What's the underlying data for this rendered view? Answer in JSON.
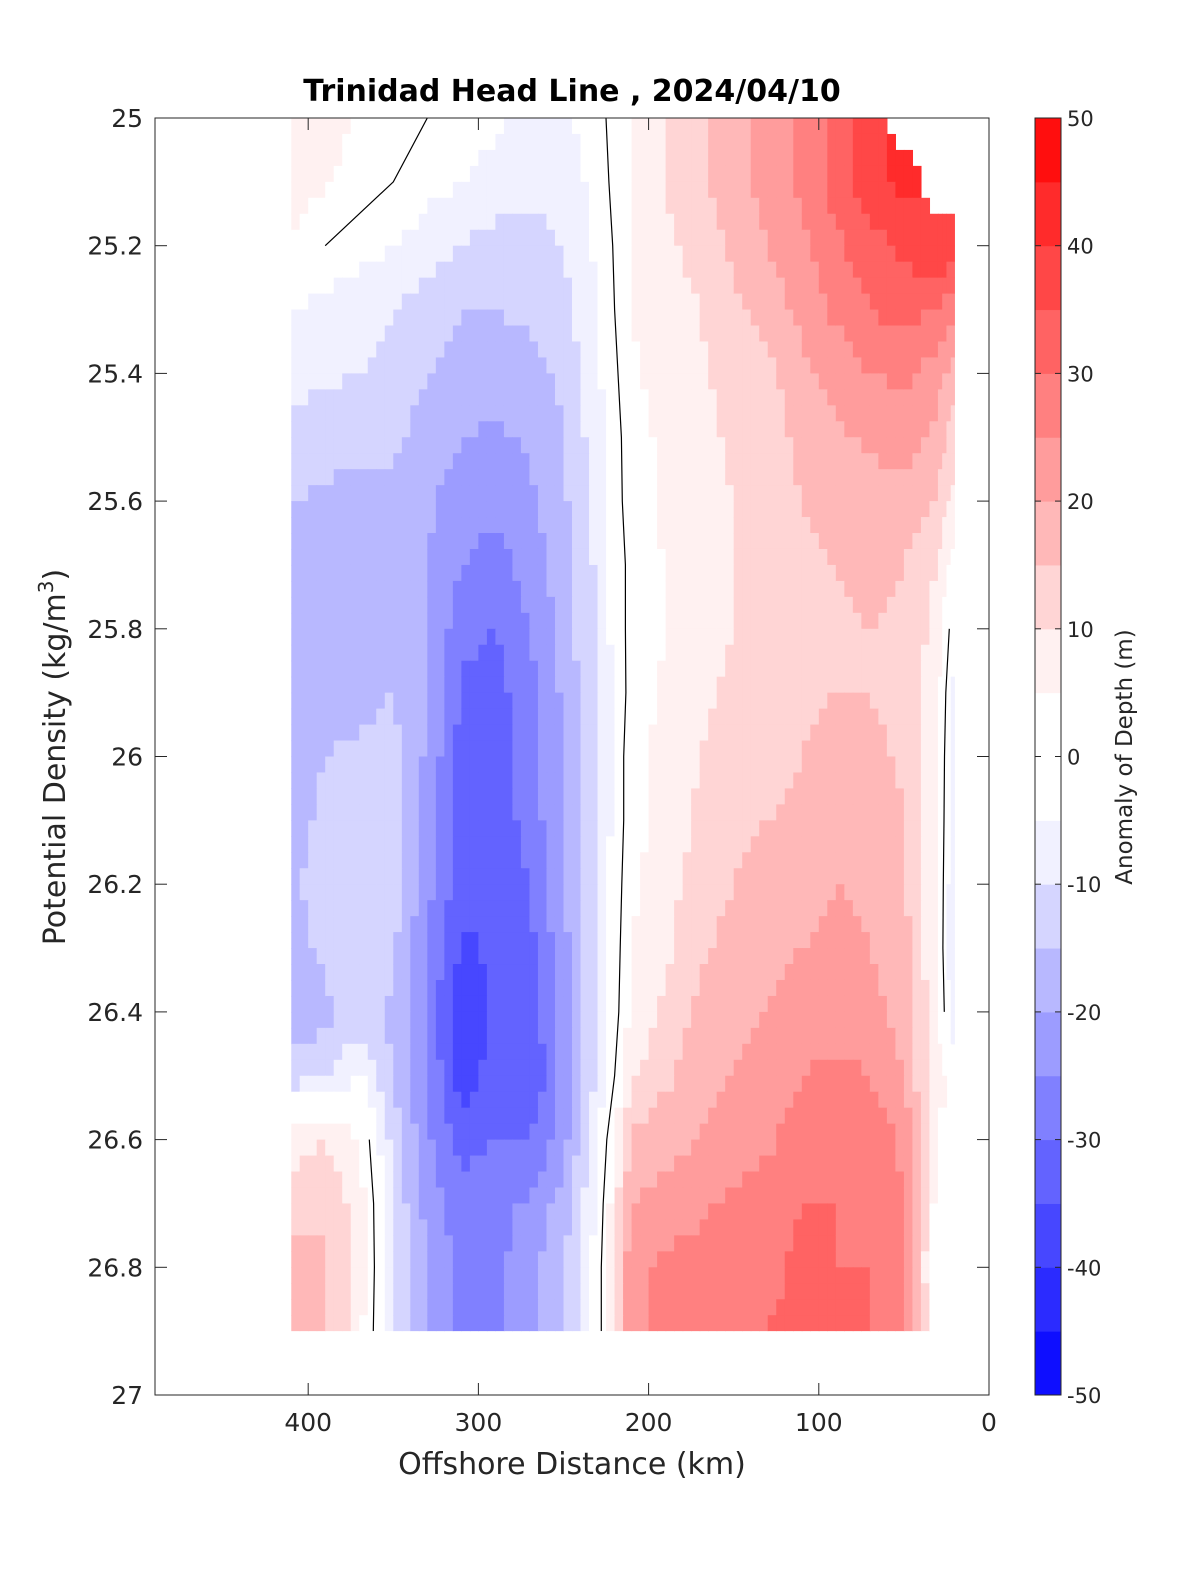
{
  "chart_data": {
    "type": "heatmap",
    "title": "Trinidad Head Line , 2024/04/10",
    "xlabel": "Offshore Distance (km)",
    "ylabel_main": "Potential Density (kg/m",
    "ylabel_sup": "3",
    "ylabel_close": ")",
    "colorbar_label": "Anomaly of Depth (m)",
    "xlim": [
      490,
      0
    ],
    "ylim": [
      25,
      27
    ],
    "x_reversed": true,
    "y_reversed": true,
    "xticks": [
      400,
      300,
      200,
      100,
      0
    ],
    "xtick_labels": [
      "400",
      "300",
      "200",
      "100",
      "0"
    ],
    "yticks": [
      25,
      25.2,
      25.4,
      25.6,
      25.8,
      26,
      26.2,
      26.4,
      26.6,
      26.8,
      27
    ],
    "ytick_labels": [
      "25",
      "25.2",
      "25.4",
      "25.6",
      "25.8",
      "26",
      "26.2",
      "26.4",
      "26.6",
      "26.8",
      "27"
    ],
    "colorbar_range": [
      -50,
      50
    ],
    "colorbar_ticks": [
      50,
      40,
      30,
      20,
      10,
      0,
      -10,
      -20,
      -30,
      -40,
      -50
    ],
    "colorbar_tick_labels": [
      "50",
      "40",
      "30",
      "20",
      "10",
      "0",
      "-10",
      "-20",
      "-30",
      "-40",
      "-50"
    ],
    "colorbar_levels": [
      -50,
      -45,
      -40,
      -35,
      -30,
      -25,
      -20,
      -15,
      -10,
      -5,
      5,
      10,
      15,
      20,
      25,
      30,
      35,
      40,
      45,
      50
    ],
    "data_extent": {
      "x": [
        410,
        20
      ],
      "y": [
        25,
        26.9
      ]
    },
    "grid": false,
    "zero_contour_color": "#000000",
    "colormap": {
      "negative": "#0000ff",
      "zero": "#ffffff",
      "positive": "#ff0000"
    },
    "x": [
      410,
      390,
      370,
      350,
      330,
      310,
      290,
      270,
      250,
      230,
      210,
      190,
      170,
      150,
      130,
      110,
      90,
      70,
      50,
      30,
      20
    ],
    "y": [
      25.0,
      25.1,
      25.2,
      25.3,
      25.4,
      25.5,
      25.6,
      25.7,
      25.8,
      25.9,
      26.0,
      26.1,
      26.2,
      26.3,
      26.4,
      26.5,
      26.6,
      26.7,
      26.8,
      26.9
    ],
    "z": [
      [
        8,
        6,
        5,
        3,
        0,
        -2,
        -4,
        -6,
        -6,
        -2,
        6,
        10,
        14,
        18,
        22,
        26,
        32,
        40,
        null,
        null,
        null
      ],
      [
        8,
        6,
        3,
        0,
        -3,
        -5,
        -7,
        -8,
        -8,
        -3,
        6,
        10,
        14,
        18,
        22,
        26,
        32,
        38,
        42,
        null,
        null
      ],
      [
        4,
        0,
        -3,
        -5,
        -8,
        -10,
        -12,
        -12,
        -10,
        -4,
        5,
        9,
        12,
        16,
        20,
        24,
        29,
        33,
        36,
        40,
        38
      ],
      [
        -5,
        -7,
        -8,
        -10,
        -12,
        -15,
        -15,
        -14,
        -12,
        -5,
        5,
        8,
        10,
        14,
        17,
        22,
        26,
        30,
        32,
        30,
        26
      ],
      [
        -8,
        -9,
        -10,
        -12,
        -15,
        -17,
        -18,
        -17,
        -14,
        -6,
        4,
        7,
        9,
        12,
        14,
        18,
        22,
        25,
        26,
        22,
        18
      ],
      [
        -12,
        -13,
        -13,
        -14,
        -17,
        -20,
        -21,
        -19,
        -15,
        -7,
        3,
        6,
        8,
        11,
        13,
        16,
        19,
        21,
        22,
        18,
        12
      ],
      [
        -15,
        -16,
        -17,
        -16,
        -19,
        -23,
        -24,
        -21,
        -16,
        -8,
        3,
        6,
        8,
        10,
        12,
        15,
        17,
        18,
        18,
        14,
        8
      ],
      [
        -15,
        -18,
        -20,
        -17,
        -20,
        -25,
        -27,
        -23,
        -17,
        -9,
        2,
        5,
        8,
        10,
        12,
        14,
        15,
        16,
        15,
        10,
        2
      ],
      [
        -16,
        -17,
        -20,
        -16,
        -20,
        -28,
        -30,
        -25,
        -18,
        -9,
        2,
        5,
        8,
        10,
        12,
        13,
        14,
        15,
        14,
        8,
        -4
      ],
      [
        -17,
        -16,
        -17,
        -15,
        -20,
        -31,
        -32,
        -27,
        -19,
        -10,
        2,
        6,
        9,
        11,
        12,
        14,
        15,
        15,
        13,
        6,
        -7
      ],
      [
        -18,
        -15,
        -14,
        -13,
        -21,
        -32,
        -33,
        -28,
        -20,
        -10,
        3,
        7,
        10,
        12,
        13,
        15,
        16,
        17,
        14,
        5,
        -8
      ],
      [
        -17,
        -14,
        -12,
        -12,
        -22,
        -32,
        -33,
        -28,
        -20,
        -10,
        3,
        7,
        11,
        13,
        15,
        16,
        18,
        18,
        15,
        5,
        -9
      ],
      [
        -16,
        -13,
        -10,
        -12,
        -23,
        -33,
        -34,
        -30,
        -20,
        -10,
        4,
        8,
        12,
        15,
        17,
        18,
        20,
        19,
        16,
        5,
        -11
      ],
      [
        -17,
        -14,
        -12,
        -14,
        -25,
        -36,
        -34,
        -32,
        -22,
        -10,
        5,
        9,
        14,
        17,
        19,
        20,
        21,
        20,
        17,
        5,
        -12
      ],
      [
        -18,
        -16,
        -13,
        -16,
        -26,
        -39,
        -34,
        -33,
        -23,
        -10,
        6,
        11,
        16,
        18,
        20,
        22,
        23,
        22,
        18,
        6,
        -10
      ],
      [
        -13,
        -12,
        -4,
        -16,
        -25,
        -38,
        -33,
        -35,
        -23,
        -9,
        9,
        14,
        18,
        20,
        22,
        25,
        26,
        25,
        20,
        6,
        null
      ],
      [
        8,
        10,
        5,
        -12,
        -24,
        -32,
        -30,
        -30,
        -22,
        -6,
        16,
        18,
        20,
        22,
        24,
        28,
        30,
        29,
        24,
        4,
        null
      ],
      [
        12,
        14,
        8,
        -11,
        -22,
        -28,
        -27,
        -24,
        -18,
        -4,
        20,
        22,
        24,
        26,
        28,
        30,
        30,
        29,
        25,
        2,
        null
      ],
      [
        18,
        16,
        8,
        -10,
        -20,
        -27,
        -26,
        -22,
        -15,
        -3,
        24,
        26,
        27,
        28,
        29,
        31,
        30,
        30,
        26,
        0,
        null
      ],
      [
        19,
        16,
        7,
        -10,
        -20,
        -27,
        -26,
        -22,
        -15,
        -3,
        24,
        26,
        27,
        29,
        30,
        31,
        30,
        30,
        26,
        2,
        null
      ]
    ]
  }
}
